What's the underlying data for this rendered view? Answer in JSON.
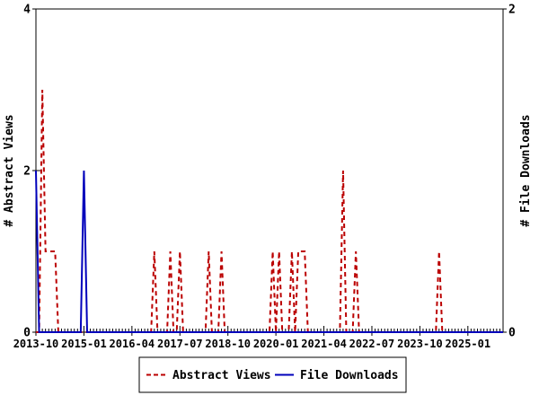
{
  "chart_data": {
    "type": "line",
    "title": "",
    "x_axis": {
      "start_month": "2013-10",
      "end_month": "2025-12",
      "major_tick_every_months": 15,
      "tick_labels": [
        "2013-10",
        "2015-01",
        "2016-04",
        "2017-07",
        "2018-10",
        "2020-01",
        "2021-04",
        "2022-07",
        "2023-10",
        "2025-01"
      ],
      "minor_ticks": "monthly",
      "grid": "off"
    },
    "y_left_axis": {
      "label": "# Abstract Views",
      "min": 0,
      "max": 4,
      "tick_labels": [
        "0",
        "2",
        "4"
      ],
      "tick_values": [
        0,
        2,
        4
      ]
    },
    "y_right_axis": {
      "label": "# File Downloads",
      "min": 0,
      "max": 2,
      "tick_labels": [
        "0",
        "2"
      ],
      "tick_values": [
        0,
        2
      ]
    },
    "series": [
      {
        "name": "Abstract Views",
        "axis": "left",
        "color": "#bb0000",
        "style": "dashed",
        "nonzero_points": [
          {
            "month": "2013-12",
            "value": 3
          },
          {
            "month": "2014-01",
            "value": 1
          },
          {
            "month": "2014-02",
            "value": 1
          },
          {
            "month": "2014-03",
            "value": 1
          },
          {
            "month": "2014-04",
            "value": 1
          },
          {
            "month": "2016-11",
            "value": 1
          },
          {
            "month": "2017-04",
            "value": 1
          },
          {
            "month": "2017-07",
            "value": 1
          },
          {
            "month": "2018-04",
            "value": 1
          },
          {
            "month": "2018-08",
            "value": 1
          },
          {
            "month": "2019-12",
            "value": 1
          },
          {
            "month": "2020-02",
            "value": 1
          },
          {
            "month": "2020-06",
            "value": 1
          },
          {
            "month": "2020-08",
            "value": 1
          },
          {
            "month": "2020-09",
            "value": 1
          },
          {
            "month": "2020-10",
            "value": 1
          },
          {
            "month": "2021-10",
            "value": 2
          },
          {
            "month": "2022-02",
            "value": 1
          },
          {
            "month": "2024-04",
            "value": 1
          }
        ],
        "all_other_months": 0
      },
      {
        "name": "File Downloads",
        "axis": "right",
        "color": "#0000bb",
        "style": "solid",
        "nonzero_points": [
          {
            "month": "2013-10",
            "value": 1
          },
          {
            "month": "2015-01",
            "value": 1
          }
        ],
        "all_other_months": 0
      }
    ],
    "legend": {
      "position": "bottom-center",
      "border": "#000000",
      "entries": [
        {
          "label": "Abstract Views",
          "color": "#bb0000",
          "style": "dashed"
        },
        {
          "label": "File Downloads",
          "color": "#0000bb",
          "style": "solid"
        }
      ]
    },
    "colors": {
      "axis": "#000000",
      "background": "#ffffff",
      "abstract_views": "#bb0000",
      "file_downloads": "#0000bb"
    }
  }
}
